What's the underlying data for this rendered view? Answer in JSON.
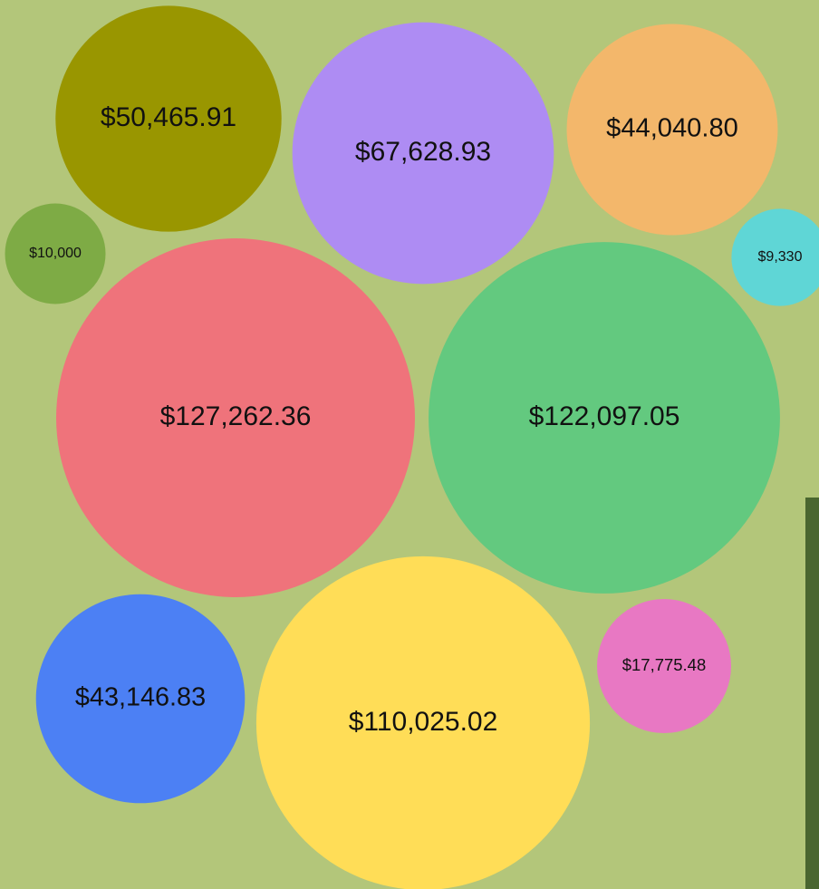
{
  "chart_data": {
    "type": "bubble",
    "values": [
      50465.91,
      67628.93,
      44040.8,
      10000,
      9330,
      127262.36,
      122097.05,
      43146.83,
      110025.02,
      17775.48
    ],
    "value_labels": [
      "$50,465.91",
      "$67,628.93",
      "$44,040.80",
      "$10,000",
      "$9,330",
      "$127,262.36",
      "$122,097.05",
      "$43,146.83",
      "$110,025.02",
      "$17,775.48"
    ],
    "colors": [
      "#999600",
      "#ae8cf3",
      "#f3b76b",
      "#7eab45",
      "#5fd6d6",
      "#ef737b",
      "#63c97f",
      "#4c80f4",
      "#ffdd57",
      "#e878c3"
    ]
  }
}
